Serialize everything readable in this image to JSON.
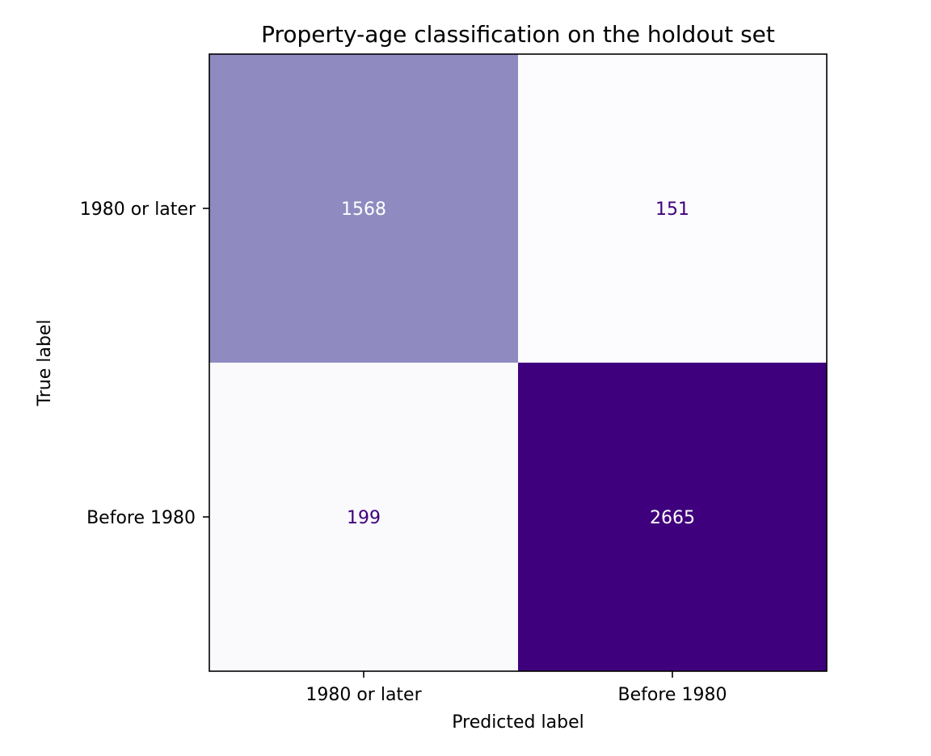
{
  "chart_data": {
    "type": "heatmap",
    "title": "Property-age classification on the holdout set",
    "xlabel": "Predicted label",
    "ylabel": "True label",
    "x_categories": [
      "1980 or later",
      "Before 1980"
    ],
    "y_categories": [
      "1980 or later",
      "Before 1980"
    ],
    "values": [
      [
        1568,
        151
      ],
      [
        199,
        2665
      ]
    ],
    "colormap": "Purples",
    "color_low": "#fcfbfd",
    "color_high": "#3f007d",
    "text_dark": "#3f007d",
    "text_light": "#ffffff",
    "colorbar": false,
    "grid": false
  }
}
